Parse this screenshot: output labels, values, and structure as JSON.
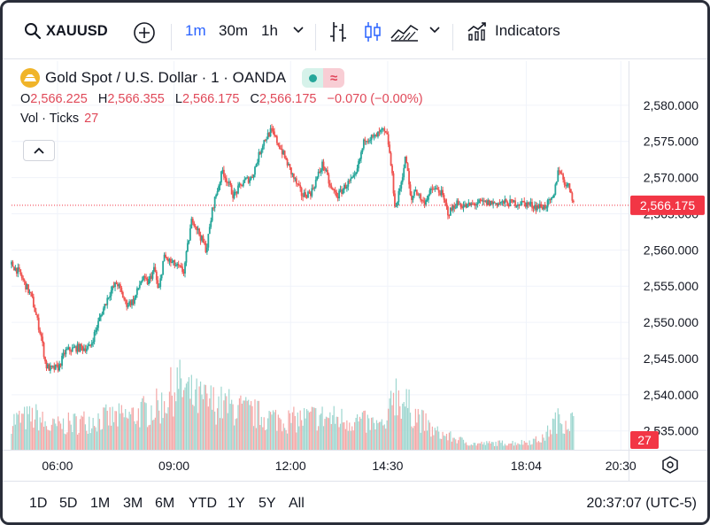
{
  "toolbar": {
    "symbol": "XAUUSD",
    "intervals": [
      "1m",
      "30m",
      "1h"
    ],
    "active_interval": "1m",
    "indicators_label": "Indicators",
    "icons": [
      "search-icon",
      "add-symbol-icon",
      "chevron-down-icon",
      "bar-style-icon",
      "candle-style-icon",
      "area-style-icon",
      "chevron-down-icon",
      "indicators-icon"
    ]
  },
  "legend": {
    "title": "Gold Spot / U.S. Dollar · 1 · OANDA",
    "open_label": "O",
    "open": "2,566.225",
    "high_label": "H",
    "high": "2,566.355",
    "low_label": "L",
    "low": "2,566.175",
    "close_label": "C",
    "close": "2,566.175",
    "change": "−0.070 (−0.00%)",
    "vol_label": "Vol · Ticks",
    "vol_value": "27"
  },
  "chart_data": {
    "type": "candlestick",
    "y_ticks": [
      2535,
      2540,
      2545,
      2550,
      2555,
      2560,
      2565,
      2570,
      2575,
      2580
    ],
    "y_tick_labels": [
      "2,535.000",
      "2,540.000",
      "2,545.000",
      "2,550.000",
      "2,555.000",
      "2,560.000",
      "2,565.000",
      "2,570.000",
      "2,575.000",
      "2,580.000"
    ],
    "ylim": [
      2532.4,
      2586.1
    ],
    "x_tick_labels": [
      "06:00",
      "09:00",
      "12:00",
      "14:30",
      "18:04",
      "20:30"
    ],
    "x_ticks_minutes": [
      360,
      540,
      720,
      870,
      1084,
      1230
    ],
    "xlim_minutes": [
      289,
      1242
    ],
    "price_path": [
      [
        289,
        2558.0
      ],
      [
        300,
        2557.0
      ],
      [
        320,
        2553.5
      ],
      [
        335,
        2548.0
      ],
      [
        342,
        2544.0
      ],
      [
        350,
        2543.5
      ],
      [
        362,
        2543.8
      ],
      [
        372,
        2546.0
      ],
      [
        390,
        2546.5
      ],
      [
        410,
        2546.5
      ],
      [
        425,
        2550.5
      ],
      [
        440,
        2554.0
      ],
      [
        452,
        2555.5
      ],
      [
        466,
        2552.5
      ],
      [
        478,
        2553.0
      ],
      [
        490,
        2556.0
      ],
      [
        500,
        2555.5
      ],
      [
        510,
        2557.5
      ],
      [
        516,
        2554.0
      ],
      [
        524,
        2559.0
      ],
      [
        540,
        2558.0
      ],
      [
        555,
        2557.0
      ],
      [
        568,
        2564.5
      ],
      [
        580,
        2562.0
      ],
      [
        590,
        2560.0
      ],
      [
        600,
        2566.0
      ],
      [
        615,
        2571.0
      ],
      [
        632,
        2567.5
      ],
      [
        648,
        2569.5
      ],
      [
        660,
        2570.0
      ],
      [
        678,
        2575.0
      ],
      [
        690,
        2576.5
      ],
      [
        705,
        2574.0
      ],
      [
        722,
        2570.5
      ],
      [
        738,
        2567.5
      ],
      [
        752,
        2568.0
      ],
      [
        770,
        2572.0
      ],
      [
        782,
        2568.5
      ],
      [
        793,
        2567.5
      ],
      [
        806,
        2569.0
      ],
      [
        820,
        2570.0
      ],
      [
        835,
        2575.5
      ],
      [
        850,
        2575.5
      ],
      [
        862,
        2576.5
      ],
      [
        870,
        2575.5
      ],
      [
        876,
        2571.0
      ],
      [
        882,
        2565.5
      ],
      [
        890,
        2569.0
      ],
      [
        898,
        2573.0
      ],
      [
        906,
        2566.5
      ],
      [
        912,
        2568.5
      ],
      [
        925,
        2566.5
      ],
      [
        940,
        2568.5
      ],
      [
        952,
        2568.0
      ],
      [
        964,
        2565.0
      ],
      [
        976,
        2566.5
      ],
      [
        990,
        2566.0
      ],
      [
        1010,
        2566.5
      ],
      [
        1035,
        2566.5
      ],
      [
        1060,
        2566.5
      ],
      [
        1080,
        2566.5
      ],
      [
        1100,
        2566.0
      ],
      [
        1112,
        2566.0
      ],
      [
        1126,
        2567.0
      ],
      [
        1134,
        2571.5
      ],
      [
        1142,
        2569.5
      ],
      [
        1152,
        2568.5
      ],
      [
        1158,
        2566.2
      ]
    ],
    "last_price": 2566.175,
    "last_price_label": "2,566.175",
    "volume_label": "27",
    "volume_profile": [
      [
        289,
        40
      ],
      [
        330,
        45
      ],
      [
        345,
        30
      ],
      [
        420,
        42
      ],
      [
        470,
        45
      ],
      [
        520,
        60
      ],
      [
        545,
        90
      ],
      [
        570,
        70
      ],
      [
        620,
        60
      ],
      [
        680,
        45
      ],
      [
        720,
        40
      ],
      [
        760,
        45
      ],
      [
        820,
        40
      ],
      [
        870,
        30
      ],
      [
        876,
        85
      ],
      [
        900,
        60
      ],
      [
        940,
        25
      ],
      [
        1000,
        8
      ],
      [
        1080,
        10
      ],
      [
        1110,
        15
      ],
      [
        1130,
        40
      ],
      [
        1158,
        40
      ]
    ],
    "colors": {
      "up": "#26a69a",
      "down": "#ef5350",
      "last_price": "#f23645"
    }
  },
  "bottom": {
    "ranges": [
      "1D",
      "5D",
      "1M",
      "3M",
      "6M",
      "YTD",
      "1Y",
      "5Y",
      "All"
    ],
    "clock": "20:37:07 (UTC-5)"
  }
}
